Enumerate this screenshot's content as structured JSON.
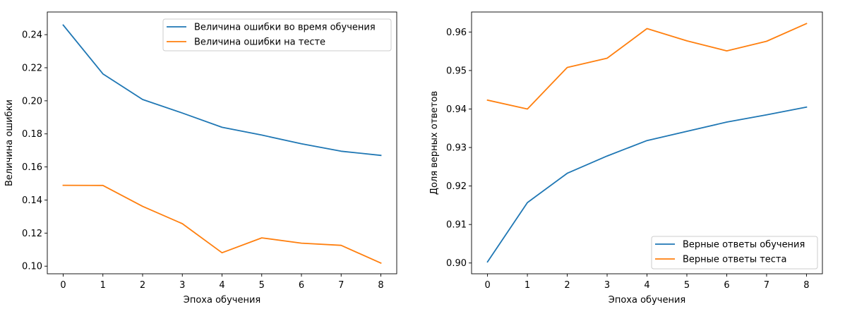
{
  "colors": {
    "series1": "#1f77b4",
    "series2": "#ff7f0e",
    "axis": "#000000",
    "legend_border": "#cccccc"
  },
  "chart_data": [
    {
      "type": "line",
      "title": "",
      "xlabel": "Эпоха обучения",
      "ylabel": "Величина ошибки",
      "x": [
        0,
        1,
        2,
        3,
        4,
        5,
        6,
        7,
        8
      ],
      "xticks": [
        "0",
        "1",
        "2",
        "3",
        "4",
        "5",
        "6",
        "7",
        "8"
      ],
      "yticks": [
        "0.10",
        "0.12",
        "0.14",
        "0.16",
        "0.18",
        "0.20",
        "0.22",
        "0.24"
      ],
      "ytick_values": [
        0.1,
        0.12,
        0.14,
        0.16,
        0.18,
        0.2,
        0.22,
        0.24
      ],
      "xlim": [
        -0.4,
        8.4
      ],
      "ylim": [
        0.0954,
        0.2537
      ],
      "legend_position": "upper right",
      "series": [
        {
          "name": "Величина ошибки во время обучения",
          "color": "#1f77b4",
          "values": [
            0.2458,
            0.2163,
            0.2008,
            0.1926,
            0.184,
            0.1793,
            0.174,
            0.1695,
            0.167
          ]
        },
        {
          "name": "Величина ошибки на тесте",
          "color": "#ff7f0e",
          "values": [
            0.1489,
            0.1488,
            0.1362,
            0.1257,
            0.1081,
            0.1171,
            0.1139,
            0.1126,
            0.1019
          ]
        }
      ]
    },
    {
      "type": "line",
      "title": "",
      "xlabel": "Эпоха обучения",
      "ylabel": "Доля верных ответов",
      "x": [
        0,
        1,
        2,
        3,
        4,
        5,
        6,
        7,
        8
      ],
      "xticks": [
        "0",
        "1",
        "2",
        "3",
        "4",
        "5",
        "6",
        "7",
        "8"
      ],
      "yticks": [
        "0.90",
        "0.91",
        "0.92",
        "0.93",
        "0.94",
        "0.95",
        "0.96"
      ],
      "ytick_values": [
        0.9,
        0.91,
        0.92,
        0.93,
        0.94,
        0.95,
        0.96
      ],
      "xlim": [
        -0.4,
        8.4
      ],
      "ylim": [
        0.8972,
        0.9652
      ],
      "legend_position": "lower right",
      "series": [
        {
          "name": "Верные ответы обучения",
          "color": "#1f77b4",
          "values": [
            0.9003,
            0.9157,
            0.9233,
            0.9278,
            0.9318,
            0.9342,
            0.9366,
            0.9385,
            0.9405
          ]
        },
        {
          "name": "Верные ответы теста",
          "color": "#ff7f0e",
          "values": [
            0.9423,
            0.94,
            0.9508,
            0.9532,
            0.9609,
            0.9577,
            0.9551,
            0.9576,
            0.9622
          ]
        }
      ]
    }
  ]
}
